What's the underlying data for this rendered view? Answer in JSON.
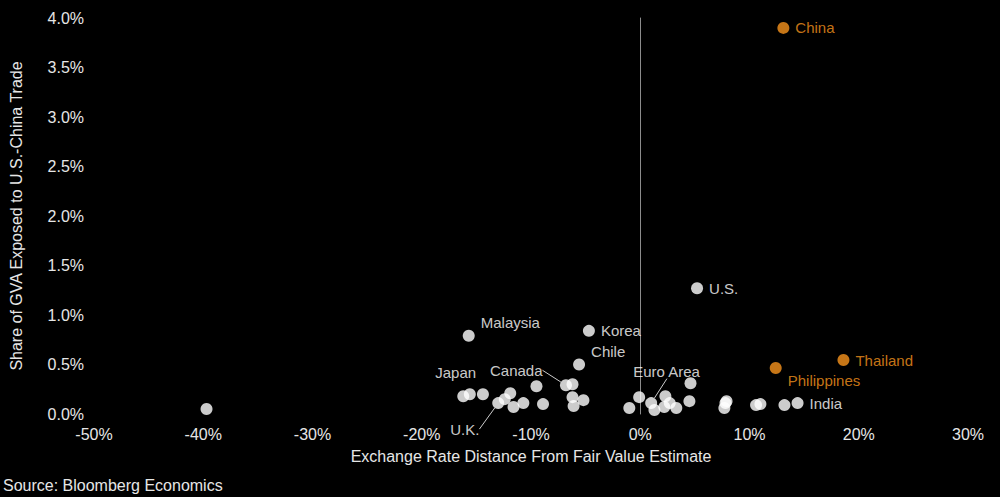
{
  "chart_data": {
    "type": "scatter",
    "x_label": "Exchange Rate Distance From Fair Value Estimate",
    "y_label": "Share of GVA Exposed to U.S.-China Trade",
    "source": "Source: Bloomberg Economics",
    "x": [
      13.1,
      5.2,
      18.6,
      12.4,
      -15.7,
      -4.7,
      -5.6,
      -16.2,
      -6.8,
      1.0,
      -13.0,
      14.4,
      -39.7,
      -15.6,
      -14.4,
      -12.4,
      -11.9,
      -11.6,
      -10.7,
      -9.5,
      -8.9,
      -6.2,
      -6.2,
      -6.1,
      -5.2,
      -1.0,
      -0.1,
      1.3,
      2.3,
      2.2,
      2.7,
      3.3,
      4.5,
      4.6,
      7.8,
      7.9,
      7.7,
      10.6,
      11.0,
      13.2
    ],
    "values": [
      3.9,
      1.27,
      0.545,
      0.465,
      0.79,
      0.84,
      0.5,
      0.18,
      0.29,
      0.11,
      0.11,
      0.11,
      0.05,
      0.2,
      0.2,
      0.15,
      0.21,
      0.07,
      0.11,
      0.28,
      0.1,
      0.3,
      0.17,
      0.08,
      0.14,
      0.06,
      0.17,
      0.04,
      0.18,
      0.07,
      0.11,
      0.06,
      0.13,
      0.31,
      0.11,
      0.13,
      0.06,
      0.09,
      0.1,
      0.09
    ],
    "labels": [
      "China",
      "U.S.",
      "Thailand",
      "Philippines",
      "Malaysia",
      "Korea",
      "Chile",
      "Japan",
      "Canada",
      "Euro Area",
      "U.K.",
      "India",
      null,
      null,
      null,
      null,
      null,
      null,
      null,
      null,
      null,
      null,
      null,
      null,
      null,
      null,
      null,
      null,
      null,
      null,
      null,
      null,
      null,
      null,
      null,
      null,
      null,
      null,
      null,
      null
    ],
    "colors": [
      "#f7941d",
      "#ffffff",
      "#f7941d",
      "#f7941d",
      "#ffffff",
      "#ffffff",
      "#ffffff",
      "#ffffff",
      "#ffffff",
      "#ffffff",
      "#ffffff",
      "#ffffff",
      "#ffffff",
      "#ffffff",
      "#ffffff",
      "#ffffff",
      "#ffffff",
      "#ffffff",
      "#ffffff",
      "#ffffff",
      "#ffffff",
      "#ffffff",
      "#ffffff",
      "#ffffff",
      "#ffffff",
      "#ffffff",
      "#ffffff",
      "#ffffff",
      "#ffffff",
      "#ffffff",
      "#ffffff",
      "#ffffff",
      "#ffffff",
      "#ffffff",
      "#ffffff",
      "#ffffff",
      "#ffffff",
      "#ffffff",
      "#ffffff",
      "#ffffff"
    ],
    "xlim": [
      -50,
      30
    ],
    "xticks": [
      {
        "value": -50,
        "label": "-50%"
      },
      {
        "value": -40,
        "label": "-40%"
      },
      {
        "value": -30,
        "label": "-30%"
      },
      {
        "value": -20,
        "label": "-20%"
      },
      {
        "value": -10,
        "label": "-10%"
      },
      {
        "value": 0,
        "label": "0%"
      },
      {
        "value": 10,
        "label": "10%"
      },
      {
        "value": 20,
        "label": "20%"
      },
      {
        "value": 30,
        "label": "30%"
      }
    ],
    "ylim": [
      0,
      4
    ],
    "yticks": [
      {
        "value": 0,
        "label": "0.0%"
      },
      {
        "value": 0.5,
        "label": "0.5%"
      },
      {
        "value": 1,
        "label": "1.0%"
      },
      {
        "value": 1.5,
        "label": "1.5%"
      },
      {
        "value": 2,
        "label": "2.0%"
      },
      {
        "value": 2.5,
        "label": "2.5%"
      },
      {
        "value": 3,
        "label": "3.0%"
      },
      {
        "value": 3.5,
        "label": "3.5%"
      },
      {
        "value": 4,
        "label": "4.0%"
      }
    ],
    "grid": false
  }
}
